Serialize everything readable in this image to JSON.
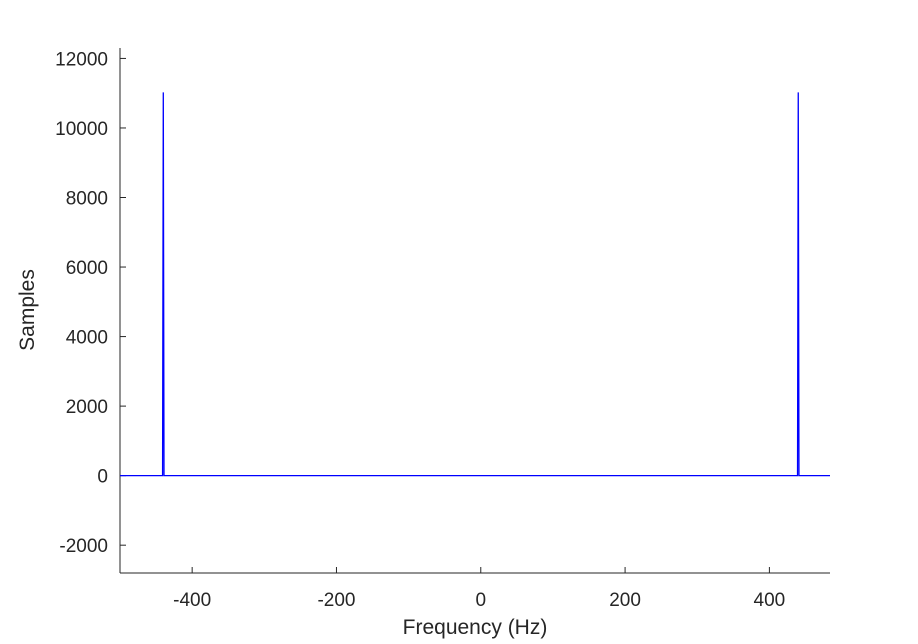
{
  "chart_data": {
    "type": "line",
    "title": "",
    "xlabel": "Frequency (Hz)",
    "ylabel": "Samples",
    "xlim": [
      -500,
      484
    ],
    "ylim": [
      -2800,
      12300
    ],
    "xticks": [
      -400,
      -200,
      0,
      200,
      400
    ],
    "xtick_labels": [
      "-400",
      "-200",
      "0",
      "200",
      "400"
    ],
    "yticks": [
      -2000,
      0,
      2000,
      4000,
      6000,
      8000,
      10000,
      12000
    ],
    "ytick_labels": [
      "-2000",
      "0",
      "2000",
      "4000",
      "6000",
      "8000",
      "10000",
      "12000"
    ],
    "grid": false,
    "legend": "none",
    "series": [
      {
        "color": "#0000ff",
        "x": [
          -500,
          -442,
          -441,
          -440,
          -439,
          -438,
          438,
          439,
          440,
          441,
          442,
          484
        ],
        "y": [
          0,
          0,
          0,
          11025,
          0,
          0,
          0,
          0,
          11025,
          0,
          0,
          0
        ]
      }
    ]
  }
}
